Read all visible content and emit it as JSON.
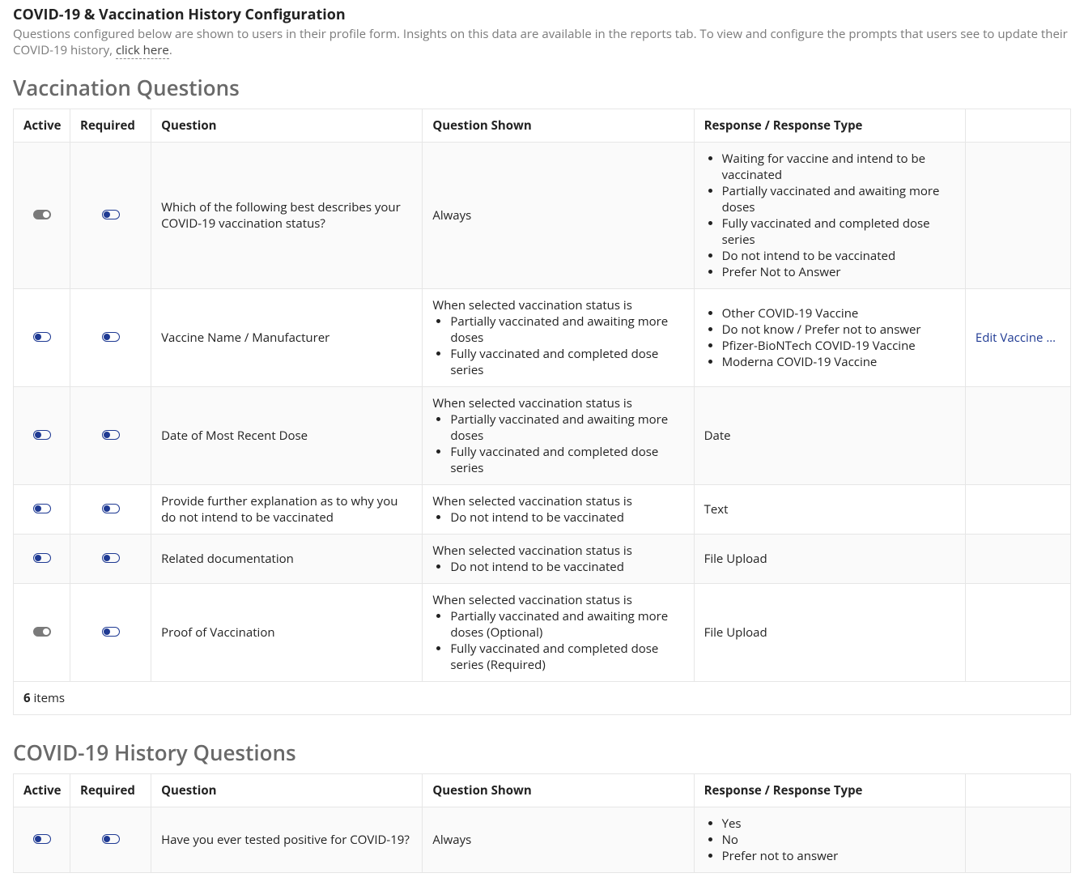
{
  "page": {
    "title": "COVID-19 & Vaccination History Configuration",
    "description_prefix": "Questions configured below are shown to users in their profile form. Insights on this data are available in the reports tab. To view and configure the prompts that users see to update their COVID-19 history, ",
    "description_link": "click here",
    "description_suffix": "."
  },
  "sections": {
    "vaccination": {
      "title": "Vaccination Questions",
      "columns": {
        "active": "Active",
        "required": "Required",
        "question": "Question",
        "shown": "Question Shown",
        "response": "Response / Response Type",
        "actions": ""
      },
      "rows": [
        {
          "active": true,
          "required": false,
          "question": "Which of the following best describes your COVID-19 vaccination status?",
          "shown_lead": "Always",
          "shown_items": [],
          "response_type": null,
          "response_items": [
            "Waiting for vaccine and intend to be vaccinated",
            "Partially vaccinated and awaiting more doses",
            "Fully vaccinated and completed dose series",
            "Do not intend to be vaccinated",
            "Prefer Not to Answer"
          ],
          "action": null
        },
        {
          "active": false,
          "required": false,
          "question": "Vaccine Name / Manufacturer",
          "shown_lead": "When selected vaccination status is",
          "shown_items": [
            "Partially vaccinated and awaiting more doses",
            "Fully vaccinated and completed dose series"
          ],
          "response_type": null,
          "response_items": [
            "Other COVID-19 Vaccine",
            "Do not know / Prefer not to answer",
            "Pfizer-BioNTech COVID-19 Vaccine",
            "Moderna COVID-19 Vaccine"
          ],
          "action": "Edit Vaccine Opti…"
        },
        {
          "active": false,
          "required": false,
          "question": "Date of Most Recent Dose",
          "shown_lead": "When selected vaccination status is",
          "shown_items": [
            "Partially vaccinated and awaiting more doses",
            "Fully vaccinated and completed dose series"
          ],
          "response_type": "Date",
          "response_items": [],
          "action": null
        },
        {
          "active": false,
          "required": false,
          "question": "Provide further explanation as to why you do not intend to be vaccinated",
          "shown_lead": "When selected vaccination status is",
          "shown_items": [
            "Do not intend to be vaccinated"
          ],
          "response_type": "Text",
          "response_items": [],
          "action": null
        },
        {
          "active": false,
          "required": false,
          "question": "Related documentation",
          "shown_lead": "When selected vaccination status is",
          "shown_items": [
            "Do not intend to be vaccinated"
          ],
          "response_type": "File Upload",
          "response_items": [],
          "action": null
        },
        {
          "active": true,
          "required": false,
          "question": "Proof of Vaccination",
          "shown_lead": "When selected vaccination status is",
          "shown_items": [
            "Partially vaccinated and awaiting more doses (Optional)",
            "Fully vaccinated and completed dose series (Required)"
          ],
          "response_type": "File Upload",
          "response_items": [],
          "action": null
        }
      ],
      "footer_count": "6",
      "footer_label": " items"
    },
    "history": {
      "title": "COVID-19 History Questions",
      "columns": {
        "active": "Active",
        "required": "Required",
        "question": "Question",
        "shown": "Question Shown",
        "response": "Response / Response Type",
        "actions": ""
      },
      "rows": [
        {
          "active": false,
          "required": false,
          "question": "Have you ever tested positive for COVID-19?",
          "shown_lead": "Always",
          "shown_items": [],
          "response_type": null,
          "response_items": [
            "Yes",
            "No",
            "Prefer not to answer"
          ],
          "action": null
        }
      ]
    }
  },
  "colors": {
    "toggle_outline": "#1f3a93",
    "toggle_on_bg": "#7a7a7a",
    "border": "#e6e6e6",
    "zebra": "#fafafa",
    "heading": "#696969",
    "link": "#1f3a93"
  }
}
